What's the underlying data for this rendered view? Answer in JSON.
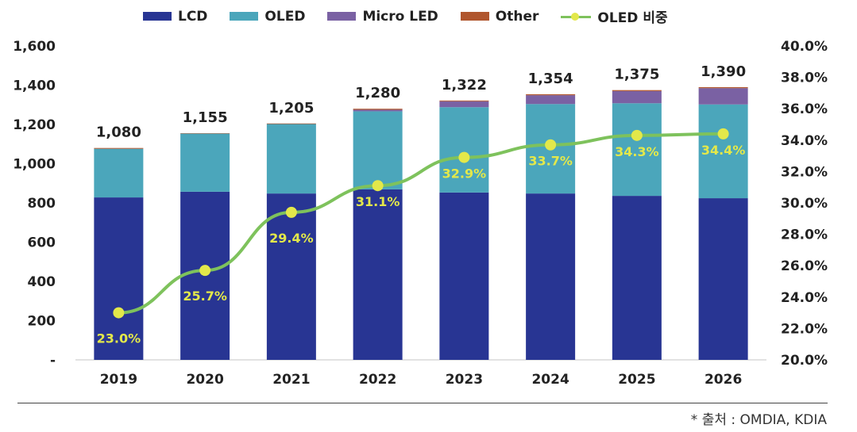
{
  "chart_data": {
    "type": "bar",
    "stacked": true,
    "categories": [
      "2019",
      "2020",
      "2021",
      "2022",
      "2023",
      "2024",
      "2025",
      "2026"
    ],
    "series": [
      {
        "name": "LCD",
        "color": "#283593",
        "values": [
          828,
          857,
          848,
          869,
          853,
          848,
          836,
          824
        ]
      },
      {
        "name": "OLED",
        "color": "#4ba6bb",
        "values": [
          248,
          297,
          354,
          398,
          435,
          456,
          472,
          478
        ]
      },
      {
        "name": "Micro LED",
        "color": "#7a61a3",
        "values": [
          0,
          0,
          0,
          8,
          30,
          45,
          62,
          83
        ]
      },
      {
        "name": "Other",
        "color": "#b0562e",
        "values": [
          4,
          1,
          3,
          5,
          4,
          5,
          5,
          5
        ]
      }
    ],
    "totals": [
      "1,080",
      "1,155",
      "1,205",
      "1,280",
      "1,322",
      "1,354",
      "1,375",
      "1,390"
    ],
    "line": {
      "name": "OLED 비중",
      "color": "#7ec25c",
      "marker_color": "#e3e84a",
      "axis": "right",
      "values": [
        23.0,
        25.7,
        29.4,
        31.1,
        32.9,
        33.7,
        34.3,
        34.4
      ],
      "labels": [
        "23.0%",
        "25.7%",
        "29.4%",
        "31.1%",
        "32.9%",
        "33.7%",
        "34.3%",
        "34.4%"
      ]
    },
    "ylim": [
      0,
      1600
    ],
    "yticks": [
      "-",
      "200",
      "400",
      "600",
      "800",
      "1,000",
      "1,200",
      "1,400",
      "1,600"
    ],
    "y2lim": [
      20,
      40
    ],
    "y2ticks": [
      "20.0%",
      "22.0%",
      "24.0%",
      "26.0%",
      "28.0%",
      "30.0%",
      "32.0%",
      "34.0%",
      "36.0%",
      "38.0%",
      "40.0%"
    ],
    "legend": [
      "LCD",
      "OLED",
      "Micro LED",
      "Other",
      "OLED 비중"
    ],
    "legend_position": "top",
    "grid": false,
    "title": "",
    "xlabel": "",
    "ylabel": ""
  },
  "source": "* 출처 : OMDIA, KDIA"
}
